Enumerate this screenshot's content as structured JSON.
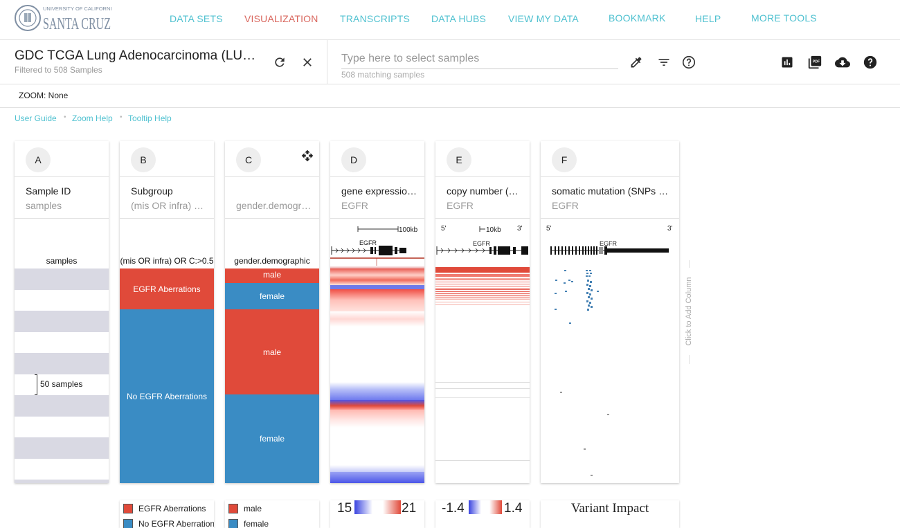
{
  "logo": {
    "line1": "UNIVERSITY OF CALIFORNIA",
    "line2": "SANTA CRUZ"
  },
  "nav": [
    {
      "label": "DATA SETS",
      "active": false
    },
    {
      "label": "VISUALIZATION",
      "active": true
    },
    {
      "label": "TRANSCRIPTS",
      "active": false
    },
    {
      "label": "DATA HUBS",
      "active": false
    },
    {
      "label": "VIEW MY DATA",
      "active": false
    },
    {
      "label": "BOOKMARK",
      "active": false
    },
    {
      "label": "HELP",
      "active": false
    },
    {
      "label": "MORE TOOLS",
      "active": false
    }
  ],
  "cohort": {
    "title": "GDC TCGA Lung Adenocarcinoma (LUAD)",
    "subtitle": "Filtered to 508 Samples"
  },
  "search": {
    "placeholder": "Type here to select samples",
    "match_count": "508 matching samples"
  },
  "zoom": {
    "label": "ZOOM: None"
  },
  "help_links": [
    "User Guide",
    "Zoom Help",
    "Tooltip Help"
  ],
  "columns": [
    {
      "letter": "A",
      "title": "Sample ID",
      "subtitle": "samples",
      "field": "samples",
      "zoom_label": "50 samples"
    },
    {
      "letter": "B",
      "title": "Subgroup",
      "subtitle": "(mis OR infra) OR C:>0.5",
      "field": "(mis OR infra) OR C:>0.5",
      "segments": [
        {
          "label": "EGFR Aberrations",
          "color": "#e04a3a"
        },
        {
          "label": "No EGFR Aberrations",
          "color": "#3a8cc4"
        }
      ]
    },
    {
      "letter": "C",
      "title": "",
      "subtitle": "gender.demographic",
      "field": "gender.demographic",
      "segments": [
        {
          "label": "male",
          "color": "#e04a3a"
        },
        {
          "label": "female",
          "color": "#3a8cc4"
        },
        {
          "label": "male",
          "color": "#e04a3a"
        },
        {
          "label": "female",
          "color": "#3a8cc4"
        }
      ]
    },
    {
      "letter": "D",
      "title": "gene expression RNAseq",
      "subtitle": "EGFR",
      "gene": "EGFR",
      "scale": "100kb"
    },
    {
      "letter": "E",
      "title": "copy number (gene-level)",
      "subtitle": "EGFR",
      "gene": "EGFR",
      "scale": "10kb",
      "five": "5'",
      "three": "3'"
    },
    {
      "letter": "F",
      "title": "somatic mutation (SNPs and small INDELs)",
      "subtitle": "EGFR",
      "gene": "EGFR",
      "five": "5'",
      "three": "3'"
    }
  ],
  "add_column": "Click to Add Column",
  "legends": {
    "subgroup": [
      "EGFR Aberrations",
      "No EGFR Aberrations"
    ],
    "gender": [
      "male",
      "female"
    ],
    "expression": {
      "min": "15",
      "max": "21"
    },
    "copy_number": {
      "min": "-1.4",
      "max": "1.4"
    },
    "mutation": "Variant Impact"
  },
  "colors": {
    "accent": "#4fc1d0",
    "active_nav": "#d9675e",
    "red": "#e04a3a",
    "blue": "#3a8cc4"
  }
}
